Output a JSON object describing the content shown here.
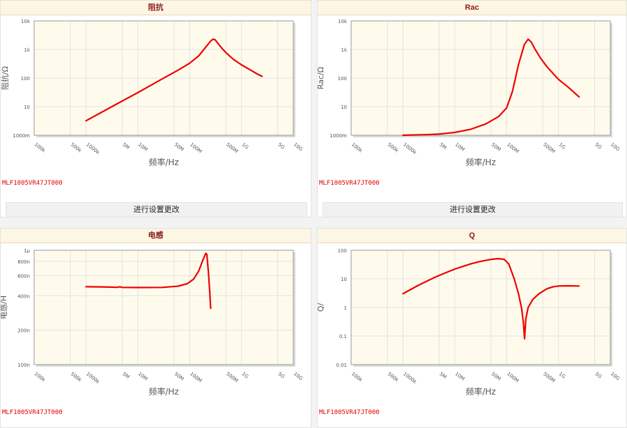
{
  "panels": [
    {
      "header": "阻抗",
      "part": "MLF1005VR47JT000",
      "button": "进行设置更改",
      "chart_data": {
        "type": "line",
        "title": "阻抗",
        "xlabel": "频率/Hz",
        "ylabel": "阻抗/Ω",
        "x_scale": "log",
        "y_scale": "log",
        "xlim": [
          100000,
          10000000000
        ],
        "ylim": [
          1,
          10000
        ],
        "x_ticks": [
          {
            "v": 100000,
            "label": "100k"
          },
          {
            "v": 500000,
            "label": "500k"
          },
          {
            "v": 1000000,
            "label": "1000k"
          },
          {
            "v": 5000000,
            "label": "5M"
          },
          {
            "v": 10000000,
            "label": "10M"
          },
          {
            "v": 50000000,
            "label": "50M"
          },
          {
            "v": 100000000,
            "label": "100M"
          },
          {
            "v": 500000000,
            "label": "500M"
          },
          {
            "v": 1000000000,
            "label": "1G"
          },
          {
            "v": 5000000000,
            "label": "5G"
          },
          {
            "v": 10000000000,
            "label": "10G"
          }
        ],
        "y_ticks": [
          {
            "v": 1,
            "label": "1000m"
          },
          {
            "v": 10,
            "label": "10"
          },
          {
            "v": 100,
            "label": "100"
          },
          {
            "v": 1000,
            "label": "1k"
          },
          {
            "v": 10000,
            "label": "10k"
          }
        ],
        "grid": true,
        "color": "#ee0000",
        "series": [
          {
            "points": [
              [
                1000000,
                3.2
              ],
              [
                3000000,
                9.5
              ],
              [
                10000000,
                31
              ],
              [
                30000000,
                95
              ],
              [
                60000000,
                190
              ],
              [
                100000000,
                330
              ],
              [
                150000000,
                600
              ],
              [
                200000000,
                1150
              ],
              [
                250000000,
                1900
              ],
              [
                280000000,
                2300
              ],
              [
                310000000,
                2200
              ],
              [
                350000000,
                1650
              ],
              [
                420000000,
                1100
              ],
              [
                500000000,
                780
              ],
              [
                700000000,
                450
              ],
              [
                1000000000,
                290
              ],
              [
                1500000000,
                190
              ],
              [
                2000000000,
                140
              ],
              [
                2500000000,
                115
              ]
            ]
          }
        ]
      }
    },
    {
      "header": "Rac",
      "part": "MLF1005VR47JT000",
      "button": "进行设置更改",
      "chart_data": {
        "type": "line",
        "title": "Rac",
        "xlabel": "频率/Hz",
        "ylabel": "Rac/Ω",
        "x_scale": "log",
        "y_scale": "log",
        "xlim": [
          100000,
          10000000000
        ],
        "ylim": [
          1,
          10000
        ],
        "x_ticks": [
          {
            "v": 100000,
            "label": "100k"
          },
          {
            "v": 500000,
            "label": "500k"
          },
          {
            "v": 1000000,
            "label": "1000k"
          },
          {
            "v": 5000000,
            "label": "5M"
          },
          {
            "v": 10000000,
            "label": "10M"
          },
          {
            "v": 50000000,
            "label": "50M"
          },
          {
            "v": 100000000,
            "label": "100M"
          },
          {
            "v": 500000000,
            "label": "500M"
          },
          {
            "v": 1000000000,
            "label": "1G"
          },
          {
            "v": 5000000000,
            "label": "5G"
          },
          {
            "v": 10000000000,
            "label": "10G"
          }
        ],
        "y_ticks": [
          {
            "v": 1,
            "label": "1000m"
          },
          {
            "v": 10,
            "label": "10"
          },
          {
            "v": 100,
            "label": "100"
          },
          {
            "v": 1000,
            "label": "1k"
          },
          {
            "v": 10000,
            "label": "10k"
          }
        ],
        "grid": true,
        "color": "#ee0000",
        "series": [
          {
            "points": [
              [
                1000000,
                1.0
              ],
              [
                3000000,
                1.05
              ],
              [
                5000000,
                1.1
              ],
              [
                10000000,
                1.25
              ],
              [
                20000000,
                1.6
              ],
              [
                40000000,
                2.5
              ],
              [
                70000000,
                4.5
              ],
              [
                100000000,
                9
              ],
              [
                130000000,
                35
              ],
              [
                170000000,
                300
              ],
              [
                220000000,
                1500
              ],
              [
                260000000,
                2300
              ],
              [
                300000000,
                1800
              ],
              [
                350000000,
                1050
              ],
              [
                450000000,
                500
              ],
              [
                600000000,
                250
              ],
              [
                800000000,
                140
              ],
              [
                1000000000,
                90
              ],
              [
                1500000000,
                50
              ],
              [
                2500000000,
                22
              ]
            ]
          }
        ]
      }
    },
    {
      "header": "电感",
      "part": "MLF1005VR47JT000",
      "chart_data": {
        "type": "line",
        "title": "电感",
        "xlabel": "频率/Hz",
        "ylabel": "电感/H",
        "x_scale": "log",
        "y_scale": "log",
        "xlim": [
          100000,
          10000000000
        ],
        "ylim": [
          1e-07,
          1e-06
        ],
        "x_ticks": [
          {
            "v": 100000,
            "label": "100k"
          },
          {
            "v": 500000,
            "label": "500k"
          },
          {
            "v": 1000000,
            "label": "1000k"
          },
          {
            "v": 5000000,
            "label": "5M"
          },
          {
            "v": 10000000,
            "label": "10M"
          },
          {
            "v": 50000000,
            "label": "50M"
          },
          {
            "v": 100000000,
            "label": "100M"
          },
          {
            "v": 500000000,
            "label": "500M"
          },
          {
            "v": 1000000000,
            "label": "1G"
          },
          {
            "v": 5000000000,
            "label": "5G"
          },
          {
            "v": 10000000000,
            "label": "10G"
          }
        ],
        "y_ticks": [
          {
            "v": 1e-07,
            "label": "100n"
          },
          {
            "v": 2e-07,
            "label": "200n"
          },
          {
            "v": 4e-07,
            "label": "400n"
          },
          {
            "v": 6e-07,
            "label": "600n"
          },
          {
            "v": 8e-07,
            "label": "800n"
          },
          {
            "v": 1e-06,
            "label": "1μ"
          }
        ],
        "grid": true,
        "color": "#ee0000",
        "series": [
          {
            "points": [
              [
                1000000,
                4.8e-07
              ],
              [
                2000000,
                4.78e-07
              ],
              [
                3000000,
                4.76e-07
              ],
              [
                4000000,
                4.74e-07
              ],
              [
                4500000,
                4.79e-07
              ],
              [
                5000000,
                4.73e-07
              ],
              [
                10000000,
                4.72e-07
              ],
              [
                30000000,
                4.73e-07
              ],
              [
                60000000,
                4.85e-07
              ],
              [
                90000000,
                5.1e-07
              ],
              [
                120000000,
                5.6e-07
              ],
              [
                150000000,
                6.6e-07
              ],
              [
                180000000,
                8.2e-07
              ],
              [
                205000000,
                9.4e-07
              ],
              [
                215000000,
                9.2e-07
              ],
              [
                230000000,
                6.5e-07
              ],
              [
                245000000,
                4.2e-07
              ],
              [
                255000000,
                3.1e-07
              ]
            ]
          }
        ]
      }
    },
    {
      "header": "Q",
      "part": "MLF1005VR47JT000",
      "chart_data": {
        "type": "line",
        "title": "Q",
        "xlabel": "频率/Hz",
        "ylabel": "Q/",
        "x_scale": "log",
        "y_scale": "log",
        "xlim": [
          100000,
          10000000000
        ],
        "ylim": [
          0.01,
          100
        ],
        "x_ticks": [
          {
            "v": 100000,
            "label": "100k"
          },
          {
            "v": 500000,
            "label": "500k"
          },
          {
            "v": 1000000,
            "label": "1000k"
          },
          {
            "v": 5000000,
            "label": "5M"
          },
          {
            "v": 10000000,
            "label": "10M"
          },
          {
            "v": 50000000,
            "label": "50M"
          },
          {
            "v": 100000000,
            "label": "100M"
          },
          {
            "v": 500000000,
            "label": "500M"
          },
          {
            "v": 1000000000,
            "label": "1G"
          },
          {
            "v": 5000000000,
            "label": "5G"
          },
          {
            "v": 10000000000,
            "label": "10G"
          }
        ],
        "y_ticks": [
          {
            "v": 0.01,
            "label": "0.01"
          },
          {
            "v": 0.1,
            "label": "0.1"
          },
          {
            "v": 1,
            "label": "1"
          },
          {
            "v": 10,
            "label": "10"
          },
          {
            "v": 100,
            "label": "100"
          }
        ],
        "grid": true,
        "color": "#ee0000",
        "series": [
          {
            "points": [
              [
                1000000,
                3.0
              ],
              [
                2000000,
                6
              ],
              [
                4000000,
                11
              ],
              [
                7000000,
                17
              ],
              [
                10000000,
                22
              ],
              [
                20000000,
                33
              ],
              [
                30000000,
                40
              ],
              [
                50000000,
                48
              ],
              [
                70000000,
                51
              ],
              [
                90000000,
                48
              ],
              [
                110000000,
                33
              ],
              [
                140000000,
                10
              ],
              [
                170000000,
                3
              ],
              [
                195000000,
                0.9
              ],
              [
                210000000,
                0.3
              ],
              [
                222000000,
                0.08
              ],
              [
                235000000,
                0.4
              ],
              [
                260000000,
                1.0
              ],
              [
                320000000,
                1.9
              ],
              [
                420000000,
                3.0
              ],
              [
                600000000,
                4.5
              ],
              [
                800000000,
                5.3
              ],
              [
                1000000000,
                5.6
              ],
              [
                1500000000,
                5.7
              ],
              [
                2500000000,
                5.6
              ]
            ]
          }
        ]
      }
    }
  ]
}
